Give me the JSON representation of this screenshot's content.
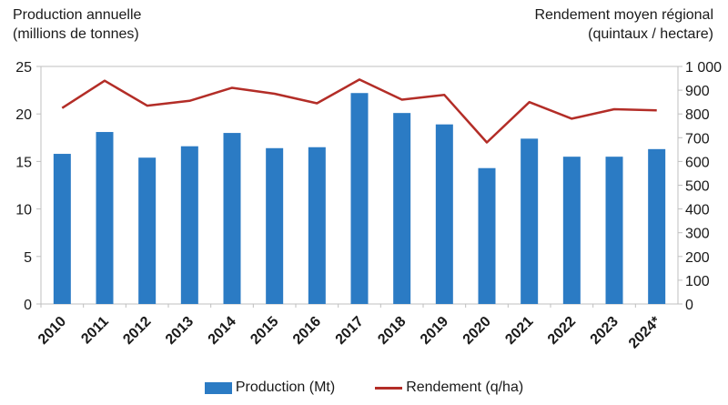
{
  "colors": {
    "bar": "#2b7bc4",
    "line": "#b32d27",
    "axis": "#bfbfbf"
  },
  "chart_data": {
    "type": "bar+line",
    "categories": [
      "2010",
      "2011",
      "2012",
      "2013",
      "2014",
      "2015",
      "2016",
      "2017",
      "2018",
      "2019",
      "2020",
      "2021",
      "2022",
      "2023",
      "2024*"
    ],
    "series": [
      {
        "name": "Production (Mt)",
        "type": "bar",
        "axis": "left",
        "values": [
          15.8,
          18.1,
          15.4,
          16.6,
          18.0,
          16.4,
          16.5,
          22.2,
          20.1,
          18.9,
          14.3,
          17.4,
          15.5,
          15.5,
          16.3
        ]
      },
      {
        "name": "Rendement (q/ha)",
        "type": "line",
        "axis": "right",
        "values": [
          825,
          940,
          835,
          855,
          910,
          885,
          845,
          945,
          860,
          880,
          680,
          850,
          780,
          820,
          815
        ]
      }
    ],
    "left_axis": {
      "title_line1": "Production annuelle",
      "title_line2": "(millions de tonnes)",
      "ylim": [
        0,
        25
      ],
      "ticks": [
        "0",
        "5",
        "10",
        "15",
        "20",
        "25"
      ]
    },
    "right_axis": {
      "title_line1": "Rendement moyen régional",
      "title_line2": "(quintaux / hectare)",
      "ylim": [
        0,
        1000
      ],
      "ticks": [
        "0",
        "100",
        "200",
        "300",
        "400",
        "500",
        "600",
        "700",
        "800",
        "900",
        "1 000"
      ]
    },
    "legend": {
      "placement": "bottom-center",
      "items": [
        "Production (Mt)",
        "Rendement (q/ha)"
      ]
    }
  }
}
